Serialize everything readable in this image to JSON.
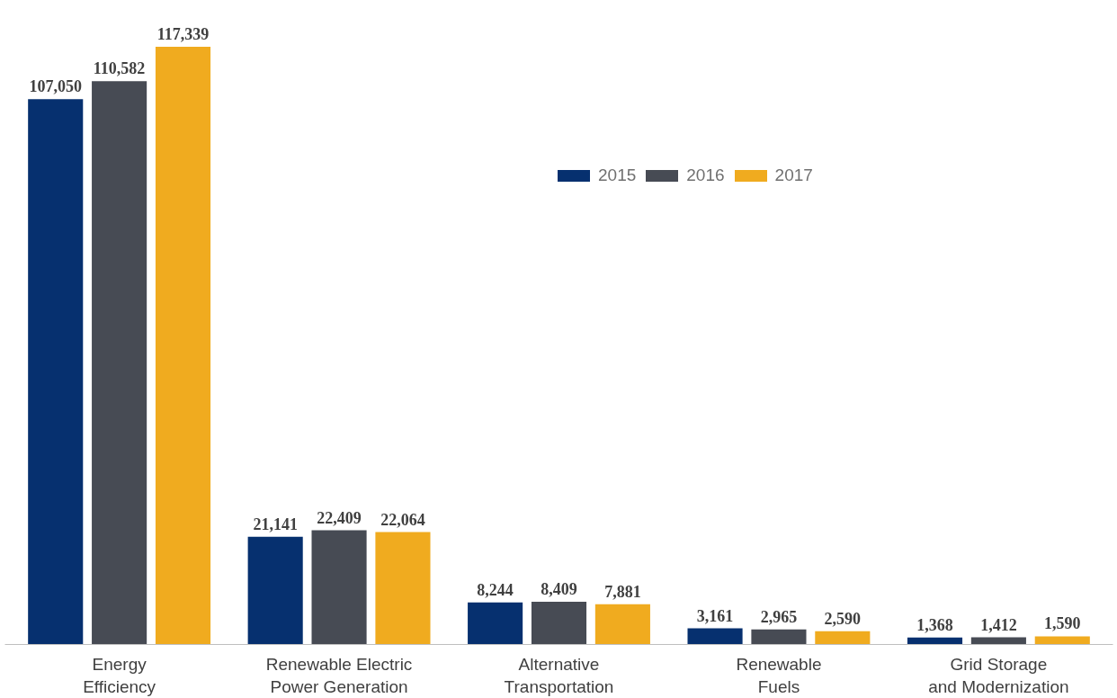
{
  "chart_data": {
    "type": "bar",
    "categories": [
      "Energy\nEfficiency",
      "Renewable Electric\nPower Generation",
      "Alternative\nTransportation",
      "Renewable\nFuels",
      "Grid Storage\nand Modernization"
    ],
    "series": [
      {
        "name": "2015",
        "color": "#06306f",
        "values": [
          107050,
          21141,
          8244,
          3161,
          1368
        ],
        "value_labels": [
          "107,050",
          "21,141",
          "8,244",
          "3,161",
          "1,368"
        ]
      },
      {
        "name": "2016",
        "color": "#474b54",
        "values": [
          110582,
          22409,
          8409,
          2965,
          1412
        ],
        "value_labels": [
          "110,582",
          "22,409",
          "8,409",
          "2,965",
          "1,412"
        ]
      },
      {
        "name": "2017",
        "color": "#f0ab1f",
        "values": [
          117339,
          22064,
          7881,
          2590,
          1590
        ],
        "value_labels": [
          "117,339",
          "22,064",
          "7,881",
          "2,590",
          "1,590"
        ]
      }
    ],
    "grid": false,
    "legend": "top"
  }
}
